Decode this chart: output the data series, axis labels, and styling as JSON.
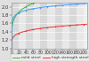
{
  "title": "",
  "xlabel": "",
  "ylabel": "",
  "ylim": [
    1.0,
    2.1
  ],
  "xlim": [
    0,
    210
  ],
  "yticks": [
    1.0,
    1.2,
    1.4,
    1.6,
    1.8,
    2.0
  ],
  "ytick_labels": [
    "1.0",
    "1.2",
    "1.4",
    "1.6",
    "1.8",
    "2.0"
  ],
  "xticks": [
    0,
    20,
    40,
    60,
    80,
    100,
    120,
    140,
    160,
    180,
    200
  ],
  "series": [
    {
      "label": "mild steel",
      "color": "#33bb33",
      "C": 40.4,
      "p": 5.0,
      "marker": "s"
    },
    {
      "label": "high strength steel",
      "color": "#ee3333",
      "C": 3200.0,
      "p": 5.0,
      "marker": "s"
    },
    {
      "label": "stainless steel",
      "color": "#4499ff",
      "C": 100.0,
      "p": 10.0,
      "marker": "s"
    }
  ],
  "band_colors": [
    "#d8d8d8",
    "#e8e8e8"
  ],
  "background_color": "#e0e0e0",
  "plot_bg": "#f0f0f0",
  "grid_color": "#ffffff",
  "tick_fontsize": 3.8,
  "legend_fontsize": 3.2
}
